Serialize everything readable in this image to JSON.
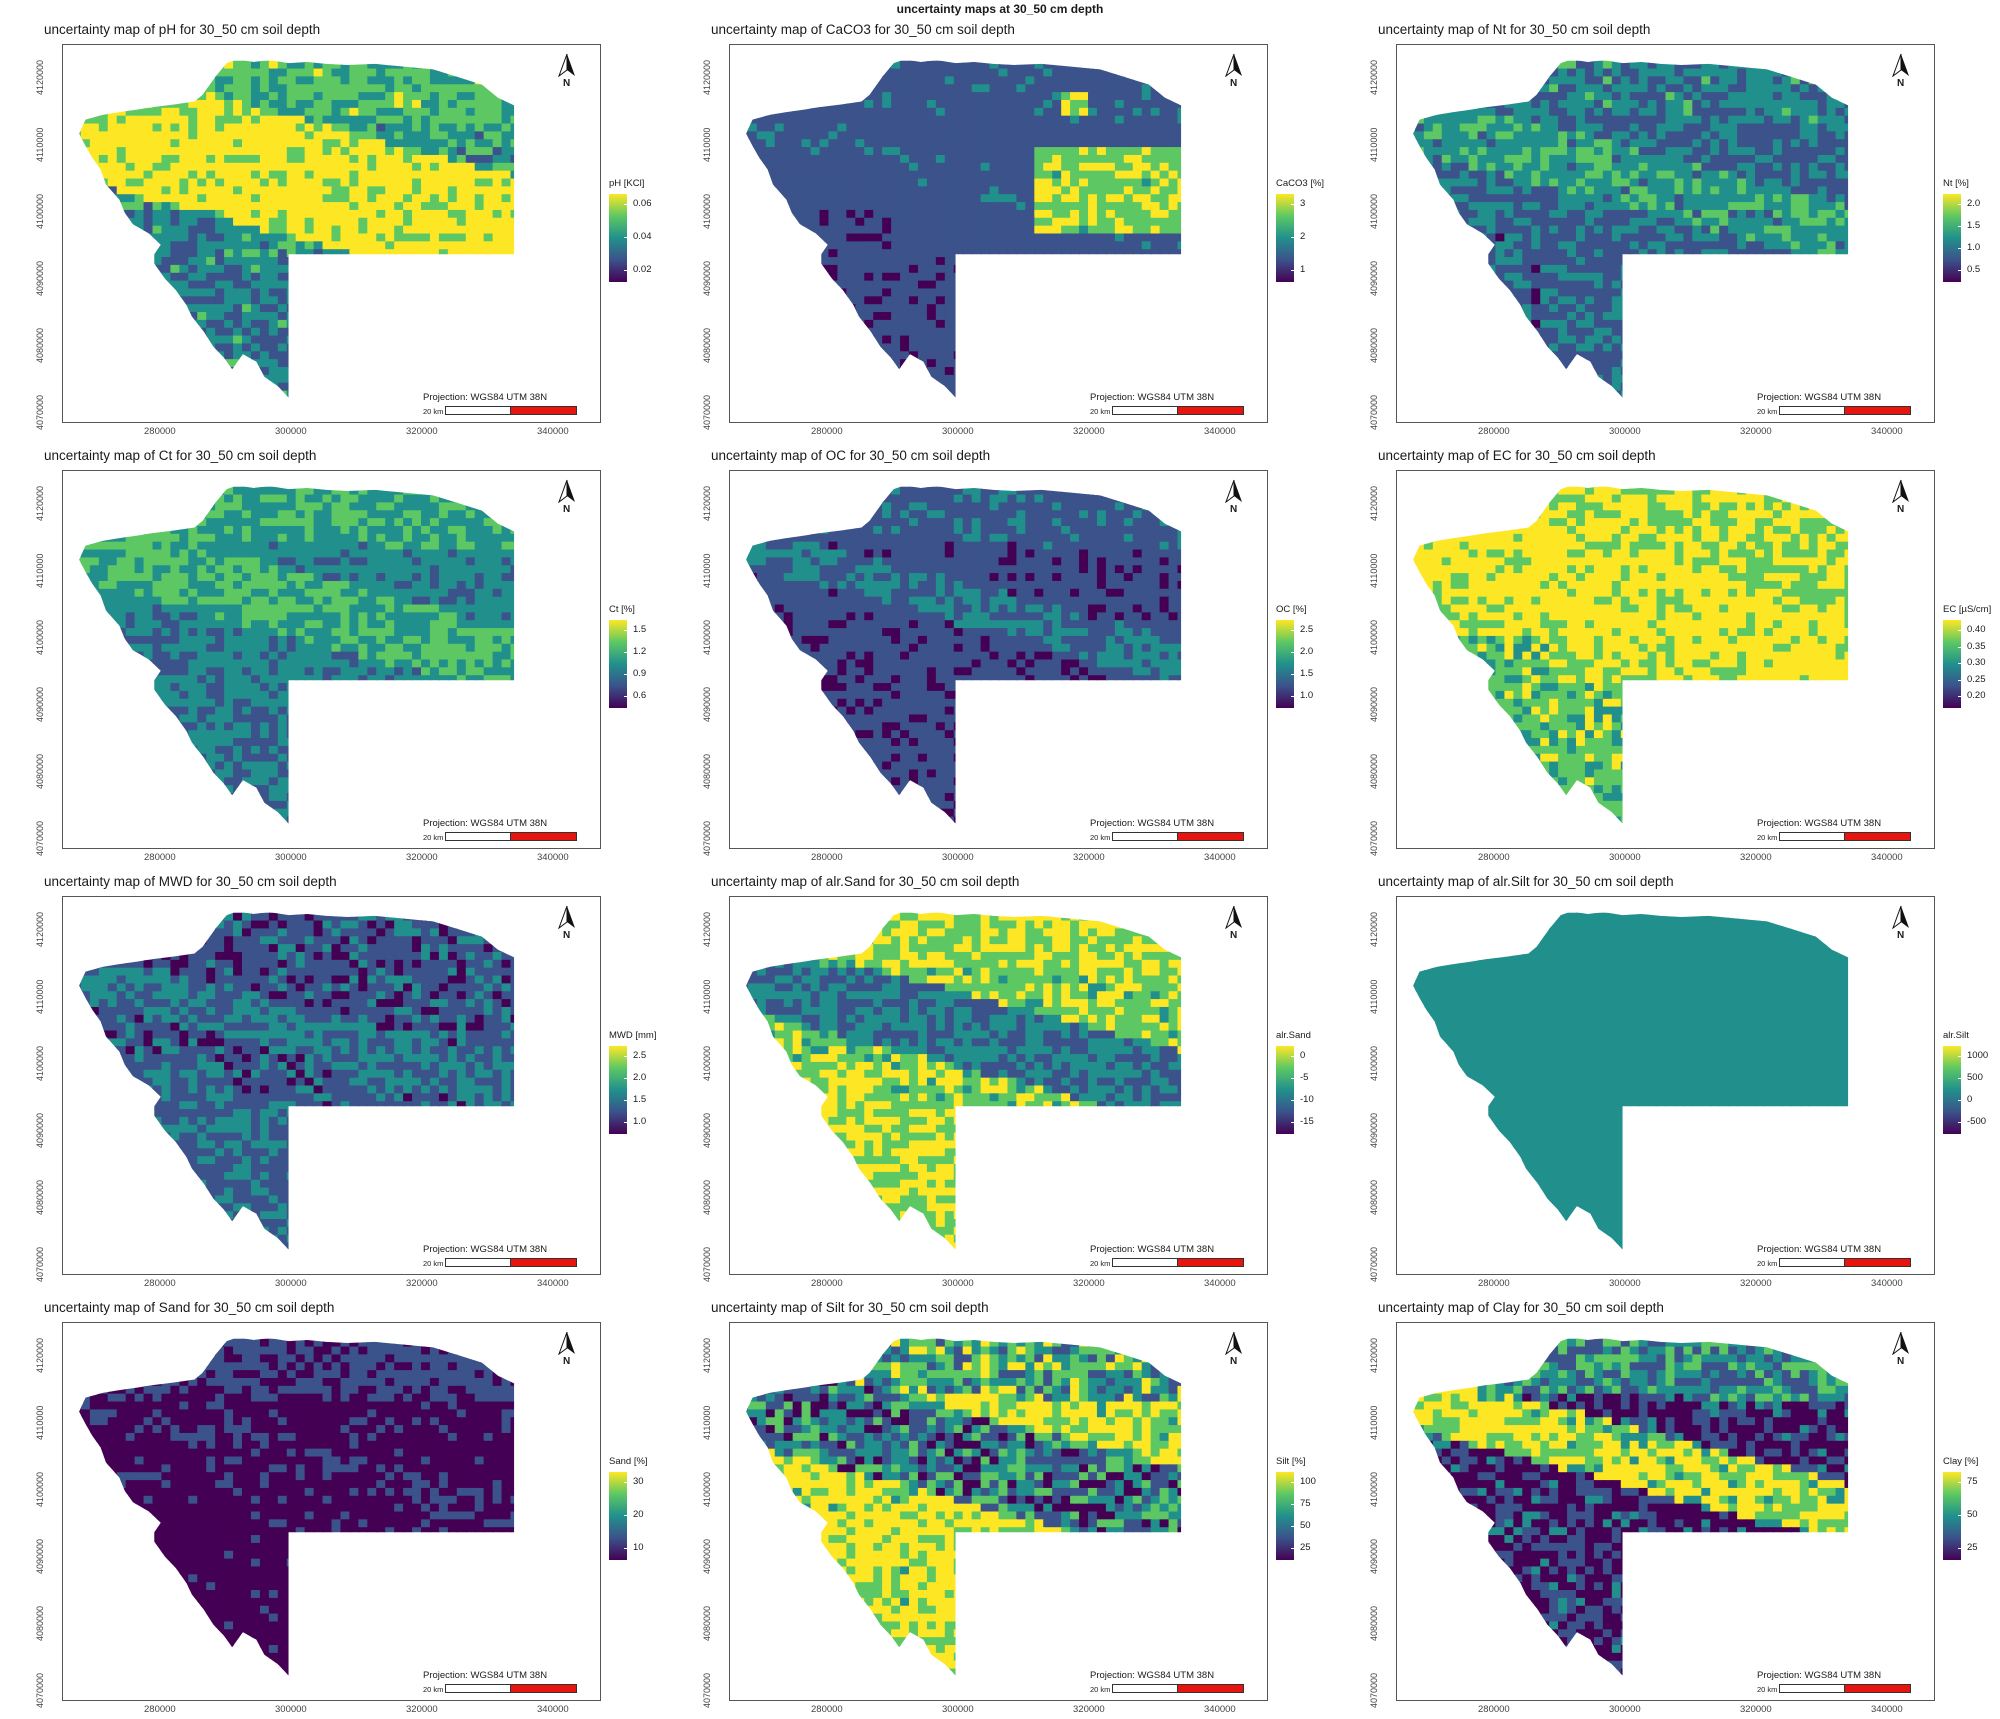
{
  "page_title": "uncertainty maps at 30_50 cm depth",
  "projection_label": "Projection: WGS84 UTM 38N",
  "scalebar_label": "20 km",
  "north_label": "N",
  "x_tick_labels": [
    "280000",
    "300000",
    "320000",
    "340000"
  ],
  "y_tick_labels": [
    "4070000",
    "4080000",
    "4090000",
    "4100000",
    "4110000",
    "4120000"
  ],
  "colors": {
    "viridis": [
      "#440154",
      "#3b528b",
      "#21908c",
      "#5dc863",
      "#fde725"
    ],
    "scalebar_red": "#e8150f",
    "frame": "#555555"
  },
  "panels": [
    {
      "title": "uncertainty map of pH for 30_50 cm soil depth",
      "legend_title": "pH [KCl]",
      "legend_labels": [
        "0.06",
        "0.04",
        "0.02"
      ],
      "pattern": "ph"
    },
    {
      "title": "uncertainty map of CaCO3 for 30_50 cm soil depth",
      "legend_title": "CaCO3 [%]",
      "legend_labels": [
        "3",
        "2",
        "1"
      ],
      "pattern": "caco3"
    },
    {
      "title": "uncertainty map of Nt for 30_50 cm soil depth",
      "legend_title": "Nt [%]",
      "legend_labels": [
        "2.0",
        "1.5",
        "1.0",
        "0.5"
      ],
      "pattern": "nt"
    },
    {
      "title": "uncertainty map of Ct for 30_50 cm soil depth",
      "legend_title": "Ct [%]",
      "legend_labels": [
        "1.5",
        "1.2",
        "0.9",
        "0.6"
      ],
      "pattern": "ct"
    },
    {
      "title": "uncertainty map of OC for 30_50 cm soil depth",
      "legend_title": "OC [%]",
      "legend_labels": [
        "2.5",
        "2.0",
        "1.5",
        "1.0"
      ],
      "pattern": "oc"
    },
    {
      "title": "uncertainty map of EC for 30_50 cm soil depth",
      "legend_title": "EC [µS/cm]",
      "legend_labels": [
        "0.40",
        "0.35",
        "0.30",
        "0.25",
        "0.20"
      ],
      "pattern": "ec"
    },
    {
      "title": "uncertainty map of MWD for 30_50 cm soil depth",
      "legend_title": "MWD [mm]",
      "legend_labels": [
        "2.5",
        "2.0",
        "1.5",
        "1.0"
      ],
      "pattern": "mwd"
    },
    {
      "title": "uncertainty map of alr.Sand for 30_50 cm soil depth",
      "legend_title": "alr.Sand",
      "legend_labels": [
        "0",
        "-5",
        "-10",
        "-15"
      ],
      "pattern": "alrsand"
    },
    {
      "title": "uncertainty map of alr.Silt for 30_50 cm soil depth",
      "legend_title": "alr.Silt",
      "legend_labels": [
        "1000",
        "500",
        "0",
        "-500"
      ],
      "pattern": "alrsilt"
    },
    {
      "title": "uncertainty map of Sand for 30_50 cm soil depth",
      "legend_title": "Sand [%]",
      "legend_labels": [
        "30",
        "20",
        "10"
      ],
      "pattern": "sand"
    },
    {
      "title": "uncertainty map of Silt for 30_50 cm soil depth",
      "legend_title": "Silt [%]",
      "legend_labels": [
        "100",
        "75",
        "50",
        "25"
      ],
      "pattern": "silt"
    },
    {
      "title": "uncertainty map of Clay for 30_50 cm soil depth",
      "legend_title": "Clay [%]",
      "legend_labels": [
        "75",
        "50",
        "25"
      ],
      "pattern": "clay"
    }
  ]
}
